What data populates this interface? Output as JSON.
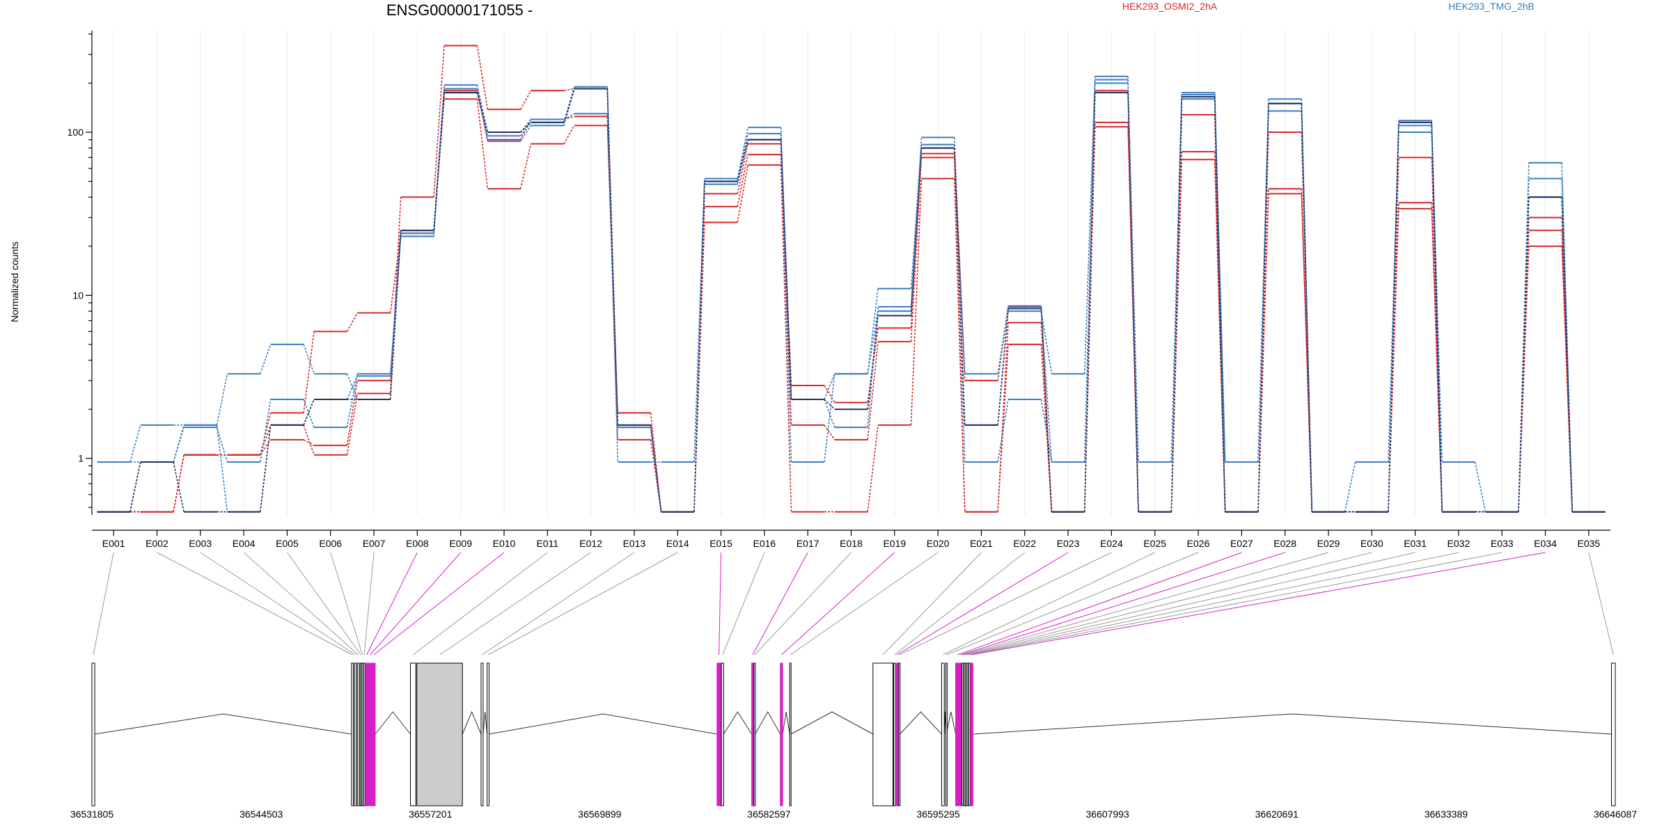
{
  "chart_data": {
    "type": "line",
    "title": "ENSG00000171055 -",
    "ylabel": "Normalized counts",
    "xlabel": "",
    "yscale": "log",
    "ylim": [
      0.45,
      420
    ],
    "yticks": [
      1,
      10,
      100
    ],
    "ytick_labels": [
      "1",
      "10",
      "100"
    ],
    "grid": "vertical",
    "legend_position": "top",
    "legend": [
      {
        "name": "HEK293_OSMI2_2hA",
        "color": "#d62728"
      },
      {
        "name": "HEK293_TMG_2hB",
        "color": "#3a7cc0"
      }
    ],
    "categories": [
      "E001",
      "E002",
      "E003",
      "E004",
      "E005",
      "E006",
      "E007",
      "E008",
      "E009",
      "E010",
      "E011",
      "E012",
      "E013",
      "E014",
      "E015",
      "E016",
      "E017",
      "E018",
      "E019",
      "E020",
      "E021",
      "E022",
      "E023",
      "E024",
      "E025",
      "E026",
      "E027",
      "E028",
      "E029",
      "E030",
      "E031",
      "E032",
      "E033",
      "E034",
      "E035"
    ],
    "series": [
      {
        "group": 0,
        "color": "#d62728",
        "values": [
          0.47,
          0.47,
          1.05,
          1.05,
          1.6,
          1.05,
          2.5,
          40,
          340,
          138,
          180,
          185,
          1.55,
          0.47,
          28,
          63,
          0.47,
          0.47,
          1.6,
          52,
          0.47,
          5,
          0.47,
          108,
          0.47,
          128,
          0.47,
          100,
          0.47,
          0.47,
          70,
          0.47,
          0.47,
          20,
          0.47
        ]
      },
      {
        "group": 0,
        "color": "#d62728",
        "values": [
          0.47,
          0.47,
          1.05,
          1.05,
          1.3,
          1.2,
          3.0,
          25,
          180,
          90,
          120,
          125,
          1.3,
          0.47,
          35,
          73,
          1.6,
          1.3,
          5.2,
          70,
          0.47,
          6.8,
          0.47,
          115,
          0.47,
          76,
          0.47,
          45,
          0.47,
          0.47,
          37,
          0.47,
          0.47,
          25,
          0.47
        ]
      },
      {
        "group": 0,
        "color": "#d62728",
        "values": [
          0.47,
          0.47,
          1.05,
          1.05,
          1.9,
          6.0,
          7.8,
          24,
          160,
          45,
          85,
          110,
          1.9,
          0.47,
          42,
          85,
          2.8,
          2.2,
          6.3,
          74,
          3.0,
          8.6,
          0.47,
          180,
          0.47,
          68,
          0.47,
          42,
          0.47,
          0.47,
          34,
          0.47,
          0.47,
          30,
          0.47
        ]
      },
      {
        "group": 1,
        "color": "#3a7cc0",
        "values": [
          0.95,
          0.95,
          1.55,
          0.95,
          2.3,
          1.55,
          3.3,
          23,
          185,
          88,
          110,
          185,
          1.55,
          0.47,
          52,
          107,
          2.3,
          1.55,
          8.5,
          93,
          0.95,
          2.3,
          0.95,
          210,
          0.95,
          170,
          0.95,
          135,
          0.47,
          0.47,
          100,
          0.47,
          0.47,
          65,
          0.47
        ]
      },
      {
        "group": 1,
        "color": "#3a7cc0",
        "values": [
          0.95,
          1.6,
          1.6,
          3.3,
          5.0,
          3.3,
          2.3,
          24,
          175,
          95,
          115,
          190,
          0.95,
          0.95,
          50,
          98,
          2.3,
          3.3,
          11,
          84,
          3.3,
          8.5,
          0.95,
          200,
          0.95,
          175,
          0.95,
          150,
          0.47,
          0.95,
          110,
          0.95,
          0.47,
          52,
          0.47
        ]
      },
      {
        "group": 1,
        "color": "#3a7cc0",
        "values": [
          0.47,
          0.95,
          1.6,
          0.47,
          1.6,
          2.3,
          3.2,
          25,
          195,
          100,
          120,
          130,
          1.6,
          0.47,
          48,
          90,
          0.95,
          3.3,
          8.0,
          80,
          1.6,
          8.0,
          3.3,
          220,
          0.47,
          160,
          0.47,
          160,
          0.47,
          0.47,
          118,
          0.47,
          0.47,
          40,
          0.47
        ]
      },
      {
        "group": 2,
        "color": "#1f2f5a",
        "values": [
          0.47,
          0.95,
          0.47,
          0.47,
          1.6,
          2.3,
          2.3,
          25,
          175,
          100,
          115,
          185,
          1.6,
          0.47,
          50,
          90,
          2.3,
          2.0,
          7.5,
          80,
          1.6,
          8.3,
          0.47,
          175,
          0.47,
          165,
          0.47,
          150,
          0.47,
          0.47,
          115,
          0.47,
          0.47,
          40,
          0.47
        ]
      }
    ],
    "gene_model": {
      "genomic_ticks": [
        "36531805",
        "36544503",
        "36557201",
        "36569899",
        "36582597",
        "36595295",
        "36607993",
        "36620691",
        "36633389",
        "36646087"
      ],
      "start": 36531805,
      "end": 36646087,
      "exons": [
        {
          "id": "E001",
          "start": 36531805,
          "end": 36532020,
          "highlight": false
        },
        {
          "id": "E002",
          "start": 36551280,
          "end": 36551420,
          "highlight": false
        },
        {
          "id": "E003",
          "start": 36551500,
          "end": 36551640,
          "highlight": false
        },
        {
          "id": "E004",
          "start": 36551720,
          "end": 36551860,
          "highlight": false
        },
        {
          "id": "E005",
          "start": 36551930,
          "end": 36552010,
          "highlight": false
        },
        {
          "id": "E006",
          "start": 36552050,
          "end": 36552130,
          "highlight": false
        },
        {
          "id": "E007",
          "start": 36552170,
          "end": 36552290,
          "highlight": false
        },
        {
          "id": "E008",
          "start": 36552320,
          "end": 36552520,
          "highlight": true
        },
        {
          "id": "E009",
          "start": 36552560,
          "end": 36552800,
          "highlight": true
        },
        {
          "id": "E010",
          "start": 36552840,
          "end": 36553060,
          "highlight": true
        },
        {
          "id": "E011",
          "start": 36555700,
          "end": 36556100,
          "highlight": false
        },
        {
          "id": "E012",
          "start": 36556180,
          "end": 36559600,
          "highlight": false,
          "shaded": true
        },
        {
          "id": "E013",
          "start": 36561000,
          "end": 36561150,
          "highlight": false
        },
        {
          "id": "E014",
          "start": 36561450,
          "end": 36561600,
          "highlight": false
        },
        {
          "id": "E015",
          "start": 36578700,
          "end": 36578990,
          "highlight": true
        },
        {
          "id": "E016",
          "start": 36579030,
          "end": 36579200,
          "highlight": false
        },
        {
          "id": "E017",
          "start": 36581300,
          "end": 36581450,
          "highlight": true
        },
        {
          "id": "E018",
          "start": 36581470,
          "end": 36581560,
          "highlight": false
        },
        {
          "id": "E019",
          "start": 36583450,
          "end": 36583620,
          "highlight": true
        },
        {
          "id": "E020",
          "start": 36584150,
          "end": 36584250,
          "highlight": false
        },
        {
          "id": "E021",
          "start": 36590400,
          "end": 36591900,
          "highlight": false
        },
        {
          "id": "E022",
          "start": 36591950,
          "end": 36592080,
          "highlight": false
        },
        {
          "id": "E023",
          "start": 36592100,
          "end": 36592300,
          "highlight": true
        },
        {
          "id": "E024",
          "start": 36592330,
          "end": 36592420,
          "highlight": false
        },
        {
          "id": "E025",
          "start": 36595550,
          "end": 36595750,
          "highlight": false
        },
        {
          "id": "E026",
          "start": 36595860,
          "end": 36595900,
          "highlight": false
        },
        {
          "id": "E027",
          "start": 36596600,
          "end": 36596900,
          "highlight": true
        },
        {
          "id": "E028",
          "start": 36596920,
          "end": 36597050,
          "highlight": true
        },
        {
          "id": "E029",
          "start": 36597070,
          "end": 36597180,
          "highlight": false
        },
        {
          "id": "E030",
          "start": 36597200,
          "end": 36597310,
          "highlight": false
        },
        {
          "id": "E031",
          "start": 36597330,
          "end": 36597430,
          "highlight": false
        },
        {
          "id": "E032",
          "start": 36597450,
          "end": 36597560,
          "highlight": false
        },
        {
          "id": "E033",
          "start": 36597580,
          "end": 36597690,
          "highlight": false
        },
        {
          "id": "E034",
          "start": 36597710,
          "end": 36597900,
          "highlight": true
        },
        {
          "id": "E035",
          "start": 36645800,
          "end": 36646087,
          "highlight": false
        }
      ]
    },
    "colors": {
      "highlight": "#d61fc6",
      "connector": "#999999",
      "exon_fill": "#ffffff",
      "shaded_fill": "#cccccc",
      "intron": "#333333"
    }
  }
}
